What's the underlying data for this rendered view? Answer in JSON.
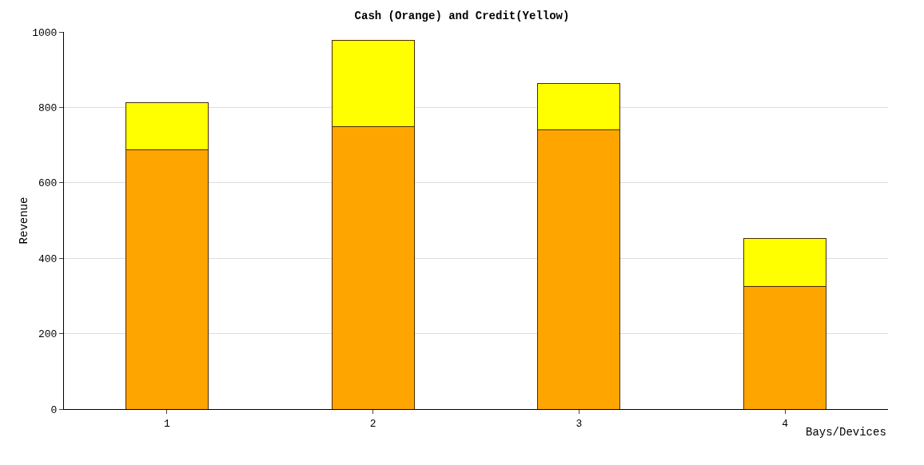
{
  "chart_data": {
    "type": "bar",
    "title": "Cash (Orange) and Credit(Yellow)",
    "xlabel": "Bays/Devices",
    "ylabel": "Revenue",
    "categories": [
      "1",
      "2",
      "3",
      "4"
    ],
    "stacked": true,
    "series": [
      {
        "color": "#ffa500",
        "values": [
          687,
          750,
          741,
          326
        ]
      },
      {
        "color": "#ffff00",
        "values": [
          126,
          228,
          122,
          126
        ]
      }
    ],
    "ylim": [
      0,
      1000
    ],
    "yticks": [
      0,
      200,
      400,
      600,
      800,
      1000
    ],
    "grid": "y"
  }
}
